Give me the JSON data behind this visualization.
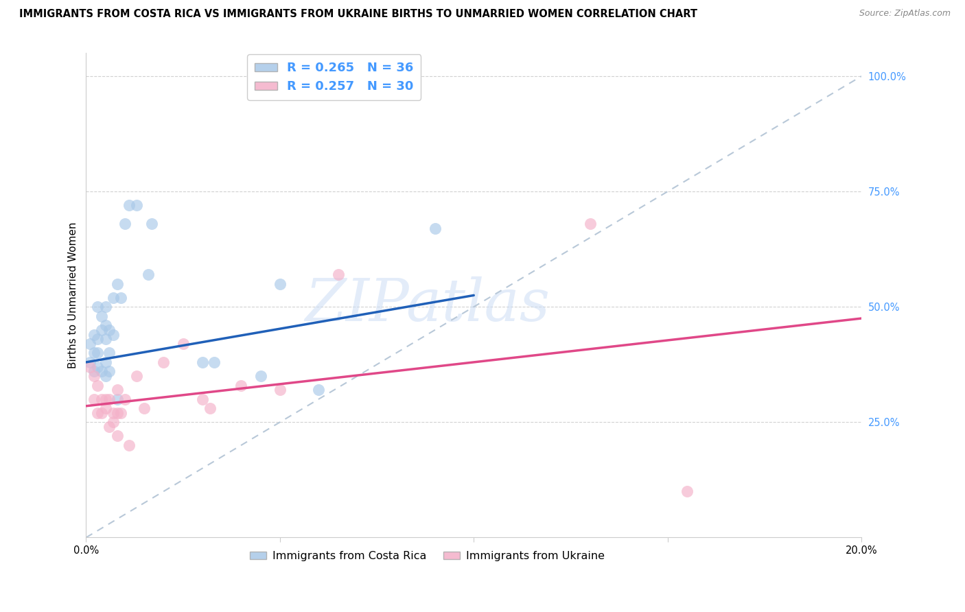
{
  "title": "IMMIGRANTS FROM COSTA RICA VS IMMIGRANTS FROM UKRAINE BIRTHS TO UNMARRIED WOMEN CORRELATION CHART",
  "source": "Source: ZipAtlas.com",
  "ylabel": "Births to Unmarried Women",
  "legend_label1": "Immigrants from Costa Rica",
  "legend_label2": "Immigrants from Ukraine",
  "R1": "0.265",
  "N1": "36",
  "R2": "0.257",
  "N2": "30",
  "color1": "#a8c8e8",
  "color2": "#f4b0c8",
  "line_color1": "#2060b8",
  "line_color2": "#e04888",
  "ref_line_color": "#b8c8d8",
  "xlim": [
    0.0,
    0.2
  ],
  "ylim": [
    0.0,
    1.05
  ],
  "yticks": [
    0.25,
    0.5,
    0.75,
    1.0
  ],
  "ytick_labels": [
    "25.0%",
    "50.0%",
    "75.0%",
    "100.0%"
  ],
  "xticks": [
    0.0,
    0.05,
    0.1,
    0.15,
    0.2
  ],
  "xtick_labels": [
    "0.0%",
    "",
    "",
    "",
    "20.0%"
  ],
  "costa_rica_x": [
    0.001,
    0.001,
    0.002,
    0.002,
    0.002,
    0.003,
    0.003,
    0.003,
    0.003,
    0.004,
    0.004,
    0.004,
    0.005,
    0.005,
    0.005,
    0.005,
    0.005,
    0.006,
    0.006,
    0.006,
    0.007,
    0.007,
    0.008,
    0.008,
    0.009,
    0.01,
    0.011,
    0.013,
    0.016,
    0.017,
    0.03,
    0.033,
    0.045,
    0.05,
    0.06,
    0.09
  ],
  "costa_rica_y": [
    0.38,
    0.42,
    0.36,
    0.4,
    0.44,
    0.37,
    0.4,
    0.43,
    0.5,
    0.36,
    0.45,
    0.48,
    0.35,
    0.38,
    0.43,
    0.46,
    0.5,
    0.36,
    0.4,
    0.45,
    0.44,
    0.52,
    0.3,
    0.55,
    0.52,
    0.68,
    0.72,
    0.72,
    0.57,
    0.68,
    0.38,
    0.38,
    0.35,
    0.55,
    0.32,
    0.67
  ],
  "ukraine_x": [
    0.001,
    0.002,
    0.002,
    0.003,
    0.003,
    0.004,
    0.004,
    0.005,
    0.005,
    0.006,
    0.006,
    0.007,
    0.007,
    0.008,
    0.008,
    0.008,
    0.009,
    0.01,
    0.011,
    0.013,
    0.015,
    0.02,
    0.025,
    0.03,
    0.032,
    0.04,
    0.05,
    0.065,
    0.13,
    0.155
  ],
  "ukraine_y": [
    0.37,
    0.3,
    0.35,
    0.27,
    0.33,
    0.27,
    0.3,
    0.28,
    0.3,
    0.24,
    0.3,
    0.25,
    0.27,
    0.22,
    0.27,
    0.32,
    0.27,
    0.3,
    0.2,
    0.35,
    0.28,
    0.38,
    0.42,
    0.3,
    0.28,
    0.33,
    0.32,
    0.57,
    0.68,
    0.1
  ],
  "cr_line_x": [
    0.0,
    0.1
  ],
  "cr_line_y": [
    0.38,
    0.525
  ],
  "uk_line_x": [
    0.0,
    0.2
  ],
  "uk_line_y": [
    0.285,
    0.475
  ],
  "background_color": "#ffffff",
  "grid_color": "#cccccc",
  "watermark_text": "ZIPatlas",
  "watermark_color": "#ccdff0",
  "title_fontsize": 10.5,
  "axis_label_fontsize": 11,
  "tick_fontsize": 10.5,
  "legend_fontsize": 13
}
